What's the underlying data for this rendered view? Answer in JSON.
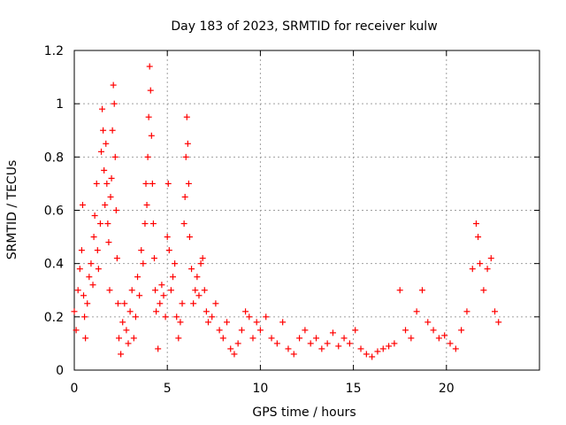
{
  "chart_data": {
    "type": "scatter",
    "title": "Day 183 of 2023, SRMTID for receiver kulw",
    "xlabel": "GPS time / hours",
    "ylabel": "SRMTID / TECUs",
    "xlim": [
      0,
      25
    ],
    "ylim": [
      0,
      1.2
    ],
    "x_ticks": [
      0,
      5,
      10,
      15,
      20
    ],
    "y_ticks": [
      0,
      0.2,
      0.4,
      0.6,
      0.8,
      1,
      1.2
    ],
    "x_tick_labels": [
      "0",
      "5",
      "10",
      "15",
      "20"
    ],
    "y_tick_labels": [
      "0",
      "0.2",
      "0.4",
      "0.6",
      "0.8",
      "1",
      "1.2"
    ],
    "grid": true,
    "marker": "+",
    "marker_color": "#ff0000",
    "series": [
      {
        "name": "SRMTID",
        "points": [
          [
            0.0,
            0.22
          ],
          [
            0.1,
            0.15
          ],
          [
            0.2,
            0.3
          ],
          [
            0.3,
            0.38
          ],
          [
            0.4,
            0.45
          ],
          [
            0.45,
            0.62
          ],
          [
            0.5,
            0.28
          ],
          [
            0.55,
            0.2
          ],
          [
            0.6,
            0.12
          ],
          [
            0.7,
            0.25
          ],
          [
            0.8,
            0.35
          ],
          [
            0.9,
            0.4
          ],
          [
            1.0,
            0.32
          ],
          [
            1.05,
            0.5
          ],
          [
            1.1,
            0.58
          ],
          [
            1.2,
            0.7
          ],
          [
            1.25,
            0.45
          ],
          [
            1.3,
            0.38
          ],
          [
            1.4,
            0.55
          ],
          [
            1.45,
            0.82
          ],
          [
            1.5,
            0.98
          ],
          [
            1.55,
            0.9
          ],
          [
            1.6,
            0.75
          ],
          [
            1.65,
            0.62
          ],
          [
            1.7,
            0.85
          ],
          [
            1.75,
            0.7
          ],
          [
            1.8,
            0.55
          ],
          [
            1.85,
            0.48
          ],
          [
            1.9,
            0.3
          ],
          [
            1.95,
            0.65
          ],
          [
            2.0,
            0.72
          ],
          [
            2.05,
            0.9
          ],
          [
            2.1,
            1.07
          ],
          [
            2.15,
            1.0
          ],
          [
            2.2,
            0.8
          ],
          [
            2.25,
            0.6
          ],
          [
            2.3,
            0.42
          ],
          [
            2.35,
            0.25
          ],
          [
            2.4,
            0.12
          ],
          [
            2.5,
            0.06
          ],
          [
            2.6,
            0.18
          ],
          [
            2.7,
            0.25
          ],
          [
            2.8,
            0.15
          ],
          [
            2.9,
            0.1
          ],
          [
            3.0,
            0.22
          ],
          [
            3.1,
            0.3
          ],
          [
            3.2,
            0.12
          ],
          [
            3.3,
            0.2
          ],
          [
            3.4,
            0.35
          ],
          [
            3.5,
            0.28
          ],
          [
            3.6,
            0.45
          ],
          [
            3.7,
            0.4
          ],
          [
            3.8,
            0.55
          ],
          [
            3.85,
            0.7
          ],
          [
            3.9,
            0.62
          ],
          [
            3.95,
            0.8
          ],
          [
            4.0,
            0.95
          ],
          [
            4.05,
            1.14
          ],
          [
            4.1,
            1.05
          ],
          [
            4.15,
            0.88
          ],
          [
            4.2,
            0.7
          ],
          [
            4.25,
            0.55
          ],
          [
            4.3,
            0.42
          ],
          [
            4.35,
            0.3
          ],
          [
            4.4,
            0.22
          ],
          [
            4.5,
            0.08
          ],
          [
            4.6,
            0.25
          ],
          [
            4.7,
            0.32
          ],
          [
            4.8,
            0.28
          ],
          [
            4.9,
            0.2
          ],
          [
            5.0,
            0.5
          ],
          [
            5.05,
            0.7
          ],
          [
            5.1,
            0.45
          ],
          [
            5.2,
            0.3
          ],
          [
            5.3,
            0.35
          ],
          [
            5.4,
            0.4
          ],
          [
            5.5,
            0.2
          ],
          [
            5.6,
            0.12
          ],
          [
            5.7,
            0.18
          ],
          [
            5.8,
            0.25
          ],
          [
            5.9,
            0.55
          ],
          [
            5.95,
            0.65
          ],
          [
            6.0,
            0.8
          ],
          [
            6.05,
            0.95
          ],
          [
            6.1,
            0.85
          ],
          [
            6.15,
            0.7
          ],
          [
            6.2,
            0.5
          ],
          [
            6.3,
            0.38
          ],
          [
            6.4,
            0.25
          ],
          [
            6.5,
            0.3
          ],
          [
            6.6,
            0.35
          ],
          [
            6.7,
            0.28
          ],
          [
            6.8,
            0.4
          ],
          [
            6.9,
            0.42
          ],
          [
            7.0,
            0.3
          ],
          [
            7.1,
            0.22
          ],
          [
            7.2,
            0.18
          ],
          [
            7.4,
            0.2
          ],
          [
            7.6,
            0.25
          ],
          [
            7.8,
            0.15
          ],
          [
            8.0,
            0.12
          ],
          [
            8.2,
            0.18
          ],
          [
            8.4,
            0.08
          ],
          [
            8.6,
            0.06
          ],
          [
            8.8,
            0.1
          ],
          [
            9.0,
            0.15
          ],
          [
            9.2,
            0.22
          ],
          [
            9.4,
            0.2
          ],
          [
            9.6,
            0.12
          ],
          [
            9.8,
            0.18
          ],
          [
            10.0,
            0.15
          ],
          [
            10.3,
            0.2
          ],
          [
            10.6,
            0.12
          ],
          [
            10.9,
            0.1
          ],
          [
            11.2,
            0.18
          ],
          [
            11.5,
            0.08
          ],
          [
            11.8,
            0.06
          ],
          [
            12.1,
            0.12
          ],
          [
            12.4,
            0.15
          ],
          [
            12.7,
            0.1
          ],
          [
            13.0,
            0.12
          ],
          [
            13.3,
            0.08
          ],
          [
            13.6,
            0.1
          ],
          [
            13.9,
            0.14
          ],
          [
            14.2,
            0.09
          ],
          [
            14.5,
            0.12
          ],
          [
            14.8,
            0.1
          ],
          [
            15.1,
            0.15
          ],
          [
            15.4,
            0.08
          ],
          [
            15.7,
            0.06
          ],
          [
            16.0,
            0.05
          ],
          [
            16.3,
            0.07
          ],
          [
            16.6,
            0.08
          ],
          [
            16.9,
            0.09
          ],
          [
            17.2,
            0.1
          ],
          [
            17.5,
            0.3
          ],
          [
            17.8,
            0.15
          ],
          [
            18.1,
            0.12
          ],
          [
            18.4,
            0.22
          ],
          [
            18.7,
            0.3
          ],
          [
            19.0,
            0.18
          ],
          [
            19.3,
            0.15
          ],
          [
            19.6,
            0.12
          ],
          [
            19.9,
            0.13
          ],
          [
            20.2,
            0.1
          ],
          [
            20.5,
            0.08
          ],
          [
            20.8,
            0.15
          ],
          [
            21.1,
            0.22
          ],
          [
            21.4,
            0.38
          ],
          [
            21.6,
            0.55
          ],
          [
            21.7,
            0.5
          ],
          [
            21.8,
            0.4
          ],
          [
            22.0,
            0.3
          ],
          [
            22.2,
            0.38
          ],
          [
            22.4,
            0.42
          ],
          [
            22.6,
            0.22
          ],
          [
            22.8,
            0.18
          ]
        ]
      }
    ]
  }
}
